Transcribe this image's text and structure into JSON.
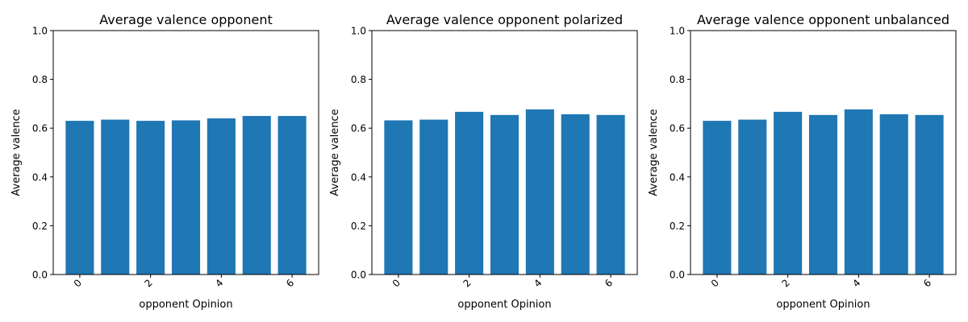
{
  "colors": {
    "bar": "#1f77b4",
    "axis": "#000000"
  },
  "chart_data": [
    {
      "type": "bar",
      "title": "Average valence opponent",
      "xlabel": "opponent Opinion",
      "ylabel": "Average valence",
      "categories": [
        0,
        1,
        2,
        3,
        4,
        5,
        6
      ],
      "values": [
        0.63,
        0.635,
        0.63,
        0.632,
        0.64,
        0.65,
        0.65
      ],
      "ylim": [
        0,
        1.0
      ],
      "yticks": [
        "0.0",
        "0.2",
        "0.4",
        "0.6",
        "0.8",
        "1.0"
      ],
      "xticks": [
        "0",
        "2",
        "4",
        "6"
      ],
      "grid": false
    },
    {
      "type": "bar",
      "title": "Average valence opponent polarized",
      "xlabel": "opponent Opinion",
      "ylabel": "Average valence",
      "categories": [
        0,
        1,
        2,
        3,
        4,
        5,
        6
      ],
      "values": [
        0.632,
        0.635,
        0.667,
        0.654,
        0.677,
        0.657,
        0.654
      ],
      "ylim": [
        0,
        1.0
      ],
      "yticks": [
        "0.0",
        "0.2",
        "0.4",
        "0.6",
        "0.8",
        "1.0"
      ],
      "xticks": [
        "0",
        "2",
        "4",
        "6"
      ],
      "grid": false
    },
    {
      "type": "bar",
      "title": "Average valence opponent unbalanced",
      "xlabel": "opponent Opinion",
      "ylabel": "Average valence",
      "categories": [
        0,
        1,
        2,
        3,
        4,
        5,
        6
      ],
      "values": [
        0.63,
        0.635,
        0.667,
        0.654,
        0.677,
        0.657,
        0.654
      ],
      "ylim": [
        0,
        1.0
      ],
      "yticks": [
        "0.0",
        "0.2",
        "0.4",
        "0.6",
        "0.8",
        "1.0"
      ],
      "xticks": [
        "0",
        "2",
        "4",
        "6"
      ],
      "grid": false
    }
  ]
}
